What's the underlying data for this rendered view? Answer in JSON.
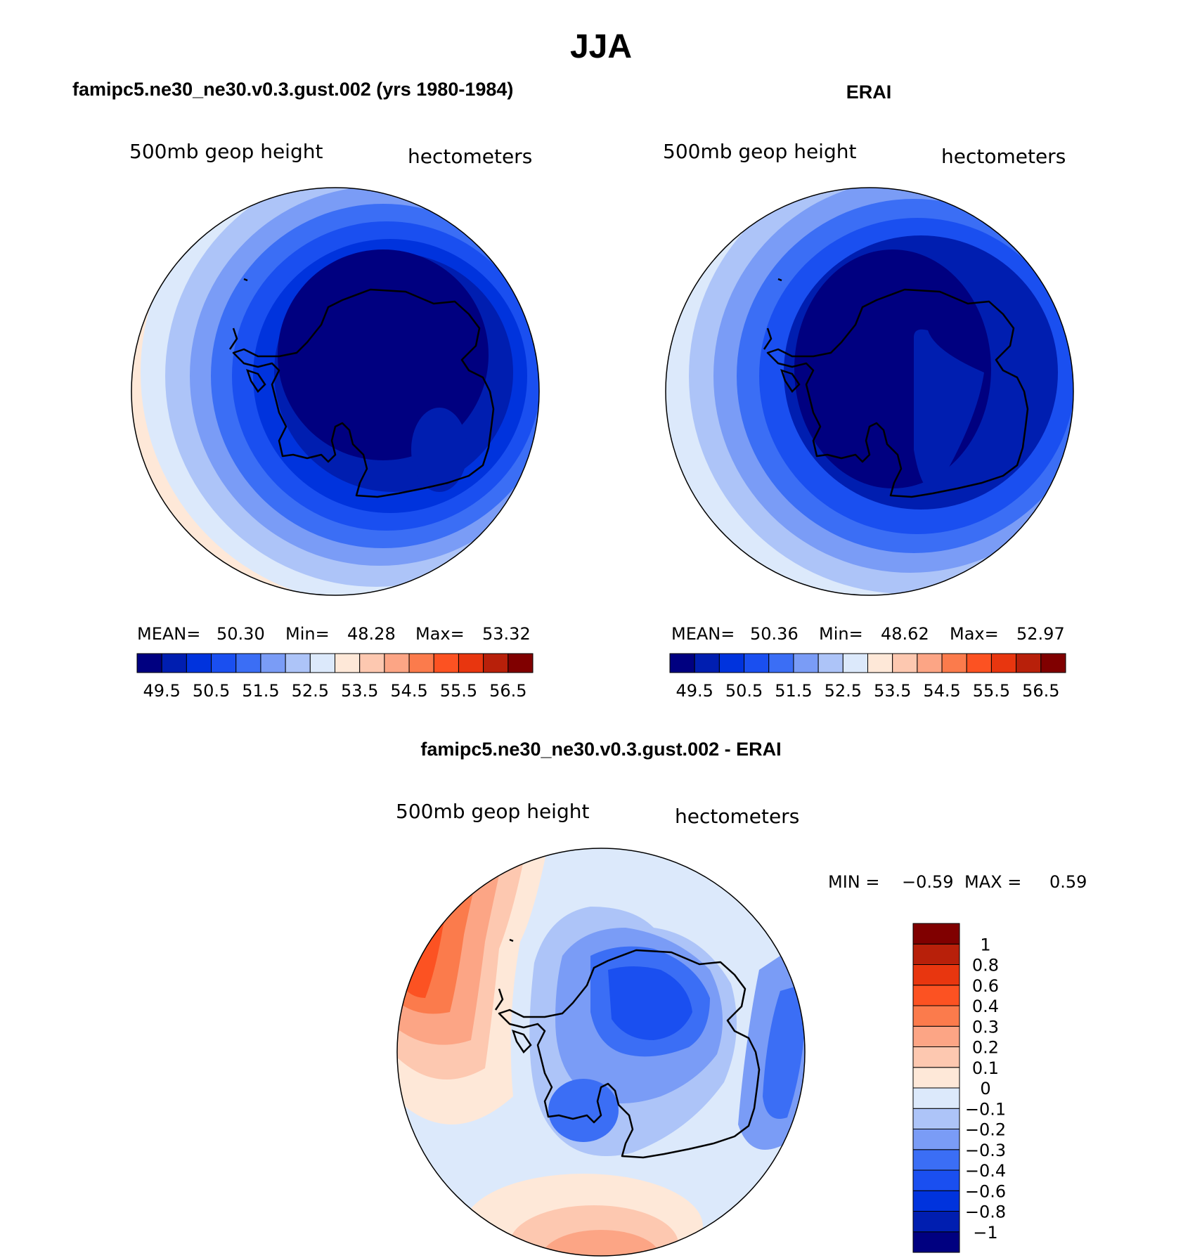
{
  "figure": {
    "title": "JJA",
    "colors": {
      "land_outline": "#000000",
      "circle_outline": "#000000"
    }
  },
  "panels": [
    {
      "id": "model",
      "header": "famipc5.ne30_ne30.v0.3.gust.002 (yrs 1980-1984)",
      "variable": "500mb  geop  height",
      "units": "hectometers",
      "stats_labels": {
        "mean": "MEAN=",
        "min": "Min=",
        "max": "Max="
      },
      "stats_values": {
        "mean": "50.30",
        "min": "48.28",
        "max": "53.32"
      }
    },
    {
      "id": "obs",
      "header": "ERAI",
      "variable": "500mb  geop  height",
      "units": "hectometers",
      "stats_labels": {
        "mean": "MEAN=",
        "min": "Min=",
        "max": "Max="
      },
      "stats_values": {
        "mean": "50.36",
        "min": "48.62",
        "max": "52.97"
      }
    },
    {
      "id": "diff",
      "header": "famipc5.ne30_ne30.v0.3.gust.002 - ERAI",
      "variable": "500mb  geop  height",
      "units": "hectometers",
      "minmax_text": {
        "min_label": "MIN =",
        "min": "−0.59",
        "max_label": "MAX =",
        "max": "0.59"
      }
    }
  ],
  "colorbars": {
    "abs": {
      "colors": [
        "#000080",
        "#001eb0",
        "#0033dd",
        "#1a4ff0",
        "#3b6ef5",
        "#7a9cf6",
        "#adc4f8",
        "#dce9fb",
        "#fee8d8",
        "#fdc8b0",
        "#fca585",
        "#fb7b4c",
        "#fc5222",
        "#e8360f",
        "#b8200a",
        "#800000"
      ],
      "labels": [
        "49.5",
        "50.5",
        "51.5",
        "52.5",
        "53.5",
        "54.5",
        "55.5",
        "56.5"
      ]
    },
    "diff": {
      "colors": [
        "#000080",
        "#001eb0",
        "#0033dd",
        "#1a4ff0",
        "#3b6ef5",
        "#7a9cf6",
        "#adc4f8",
        "#dce9fb",
        "#fee8d8",
        "#fdc8b0",
        "#fca585",
        "#fb7b4c",
        "#fc5222",
        "#e8360f",
        "#b8200a",
        "#800000"
      ],
      "labels": [
        "−1",
        "−0.8",
        "−0.6",
        "−0.4",
        "−0.3",
        "−0.2",
        "−0.1",
        "0",
        "0.1",
        "0.2",
        "0.3",
        "0.4",
        "0.6",
        "0.8",
        "1"
      ]
    }
  }
}
